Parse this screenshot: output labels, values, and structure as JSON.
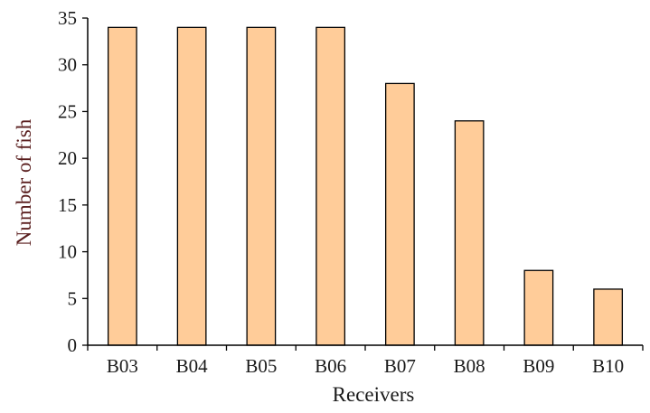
{
  "chart_data": {
    "type": "bar",
    "title": "",
    "xlabel": "Receivers",
    "ylabel": "Number of fish",
    "categories": [
      "B03",
      "B04",
      "B05",
      "B06",
      "B07",
      "B08",
      "B09",
      "B10"
    ],
    "values": [
      34,
      34,
      34,
      34,
      28,
      24,
      8,
      6
    ],
    "ylim": [
      0,
      35
    ],
    "yticks": [
      "0",
      "5",
      "10",
      "15",
      "20",
      "25",
      "30",
      "35"
    ],
    "grid": false,
    "legend": "none",
    "colors": {
      "bar_fill": "#FFCC99",
      "bar_stroke": "#000000",
      "axis": "#000000",
      "ylabel_color": "#5a1e1e"
    }
  }
}
